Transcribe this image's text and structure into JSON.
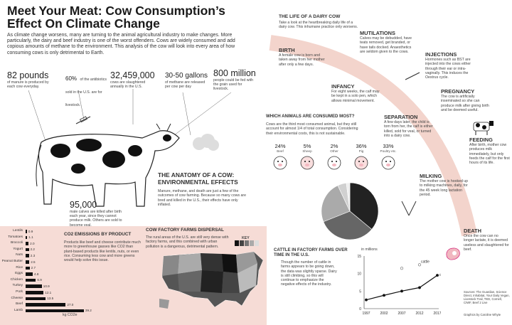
{
  "header": {
    "title_line1": "Meet Your Meat: Cow Consumption’s",
    "title_line2": "Effect On Climate Change",
    "intro": "As climate change worsens, many are turning to the animal agricultural industry to make changes. More particularly, the dairy and beef industry is one of the worst offenders. Cows are widely consumed and add copious amounts of methane to the environment. This analysis of the cow will look into every area of how consuming cows is only detrimental to Earth."
  },
  "stats": [
    {
      "value": "82 pounds",
      "label": "of manure is produced by each cow everyday."
    },
    {
      "value": "60%",
      "label": "of the antibiotics sold in the U.S. are for livestock."
    },
    {
      "value": "32,459,000",
      "label": "cows are slaughtered annually in the U.S."
    },
    {
      "value": "30-50 gallons",
      "label": "of methane are released per cow per day"
    },
    {
      "value": "800 million",
      "label": "people could be fed with the grain used for livestock."
    }
  ],
  "anatomy": {
    "heading_line1": "THE ANATOMY OF A COW:",
    "heading_line2": "ENVIRONMENTAL EFFECTS",
    "body": "Manure, methane, and death are just a few of the outcomes of cow farming. Because so many cows are bred and killed in the U.S., their effects have only inflated.",
    "male_value": "95,000",
    "male_label": "male calves are killed after birth each year, since they cannot produce milk. Others are sold to become veal."
  },
  "co2": {
    "heading": "CO2 EMISSIONS BY PRODUCT",
    "body": "Products like beef and cheese contribute much more to greenhouse gasses like CO2 than plant-based products like lentils, nuts, or even rice. Consuming less cow and more greens would help solve this issue.",
    "unit": "kg CO2e"
  },
  "co2_chart": {
    "type": "bar",
    "categories": [
      "Lentils",
      "Tomatoes",
      "Broccoli",
      "Yogurt",
      "Nuts",
      "Peanut Butter",
      "Rice",
      "Eggs",
      "Chicken",
      "Turkey",
      "Pork",
      "Cheese",
      "Beef",
      "Lamb"
    ],
    "values": [
      0.9,
      1.1,
      2.0,
      2.2,
      2.3,
      2.5,
      2.7,
      4.8,
      6.9,
      10.9,
      12.1,
      13.5,
      27.0,
      39.2
    ],
    "labels": [
      "0.9",
      "1.1",
      "2.0",
      "2.2",
      "2.3",
      "2.5",
      "2.7",
      "4.8",
      "6.9",
      "10.9",
      "12.1",
      "13.5",
      "27.0",
      "39.2"
    ]
  },
  "factory": {
    "heading": "COW FACTORY FARMS DISPERSAL",
    "body": "The rural areas of the U.S. are still very dense with factory farms, and this combined with urban pollution is a dangerous, detrimental pattern.",
    "key_label": "KEY"
  },
  "animals": {
    "heading": "WHICH ANIMALS ARE CONSUMED MOST?",
    "body": "Cows are the third most consumed animal, but they still account for almost 1/4 of total consumption. Considering their environmental costs, this is not sustainable.",
    "items": [
      {
        "pct": "24%",
        "name": "Beef"
      },
      {
        "pct": "5%",
        "name": "Sheep"
      },
      {
        "pct": "2%",
        "name": "Other"
      },
      {
        "pct": "36%",
        "name": "Pig"
      },
      {
        "pct": "33%",
        "name": "Poultry etc."
      }
    ]
  },
  "cattle": {
    "heading": "CATTLE IN FACTORY FARMS OVER TIME IN THE U.S.",
    "body": "Though the number of cattle in farms appears to be going down, the data was slightly sparse. Dairy is still climbing, so this will continue to emphasize the negative effects of the industry.",
    "y_unit": "in millions",
    "legend_cattle": "cattle",
    "legend_dairy": "dairy"
  },
  "cattle_chart": {
    "type": "line",
    "x": [
      "1997",
      "2002",
      "2007",
      "2012",
      "2017"
    ],
    "series": [
      {
        "name": "cattle",
        "values": [
          null,
          null,
          11.5,
          12.5,
          null
        ]
      },
      {
        "name": "dairy",
        "values": [
          2.5,
          3.8,
          5.0,
          6.0,
          9.5
        ]
      }
    ],
    "ylim": [
      0,
      15
    ],
    "yticks": [
      "0",
      "5",
      "10",
      "15"
    ]
  },
  "pie_chart": {
    "type": "pie",
    "values": [
      36,
      33,
      24,
      5,
      2
    ],
    "colors": [
      "#222222",
      "#666666",
      "#aaaaaa",
      "#d0d0d0",
      "#eeeeee"
    ]
  },
  "life": {
    "heading": "THE LIFE OF A DAIRY COW",
    "intro": "Take a look at the heartbreaking daily life of a dairy cow. This inhumane practice only worsens.",
    "stages": [
      {
        "title": "BIRTH",
        "text": "A female cow is born and taken away from her mother after only a few days."
      },
      {
        "title": "MUTILATIONS",
        "text": "Calves may be debudded, have teats removed, get branded, or have tails docked. Anaesthetics are seldom given to the cows."
      },
      {
        "title": "INJECTIONS",
        "text": "Hormones such as BST are injected into the cows either through their ear or intra-vaginally. This induces the Oestrus cycle."
      },
      {
        "title": "INFANCY",
        "text": "For eight weeks, the calf may be kept in a solo pen, which allows minimal movement."
      },
      {
        "title": "PREGNANCY",
        "text": "The cow is artificially inseminated so she can produce milk after giving birth and be deemed useful."
      },
      {
        "title": "SEPARATION",
        "text": "A few days later, the child is torn from her, the calf is either killed, sold for veal, or turned into a dairy cow."
      },
      {
        "title": "FEEDING",
        "text": "After birth, mother cow produces milk immediately, but only feeds the calf for the first hours of its life."
      },
      {
        "title": "MILKING",
        "text": "The mother cow is hooked up to milking machines, daily, for the 45 week long lactation period."
      },
      {
        "title": "DEATH",
        "text": "Once the cow can no longer lactate, it is deemed useless and slaughtered for beef."
      }
    ]
  },
  "footer": {
    "sources": "Sources: The Guardian, Science Direct, Inhabitat, Your Daily Vegan, Livestock Trail, TED, Cornell, CIWF, Beef 2 Live",
    "credit": "Graphics by Caroline Whyte"
  }
}
